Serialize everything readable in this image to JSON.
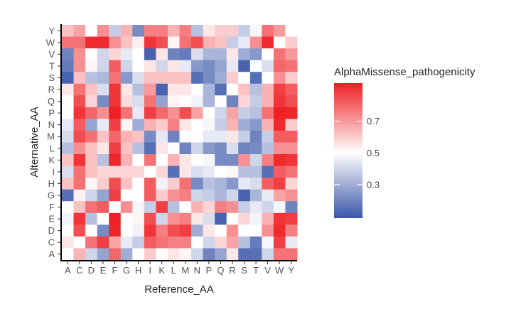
{
  "chart_data": {
    "type": "heatmap",
    "xlabel": "Reference_AA",
    "ylabel": "Alternative_AA",
    "x_categories": [
      "A",
      "C",
      "D",
      "E",
      "F",
      "G",
      "H",
      "I",
      "K",
      "L",
      "M",
      "N",
      "P",
      "Q",
      "R",
      "S",
      "T",
      "V",
      "W",
      "Y"
    ],
    "y_categories": [
      "Y",
      "W",
      "V",
      "T",
      "S",
      "R",
      "Q",
      "P",
      "N",
      "M",
      "L",
      "K",
      "I",
      "H",
      "G",
      "F",
      "E",
      "D",
      "C",
      "A"
    ],
    "legend": {
      "title": "AlphaMissense_pathogenicity",
      "ticks": [
        "0.3",
        "0.5",
        "0.7"
      ],
      "range": [
        0.09,
        0.94
      ],
      "placement": "right"
    },
    "colors": {
      "low": "#3a56a8",
      "mid": "#ffffff",
      "high": "#ee2024"
    },
    "values": [
      [
        0.62,
        0.68,
        0.5,
        0.72,
        0.38,
        0.65,
        0.22,
        0.75,
        0.75,
        0.65,
        0.75,
        0.35,
        0.55,
        0.6,
        0.6,
        0.38,
        0.48,
        0.78,
        0.7,
        0.5
      ],
      [
        0.78,
        0.78,
        0.92,
        0.92,
        0.72,
        0.62,
        0.53,
        0.9,
        0.85,
        0.52,
        0.78,
        0.85,
        0.65,
        0.62,
        0.38,
        0.45,
        0.72,
        0.92,
        0.5,
        0.6
      ],
      [
        0.2,
        0.72,
        0.5,
        0.4,
        0.58,
        0.45,
        0.5,
        0.12,
        0.55,
        0.2,
        0.18,
        0.42,
        0.32,
        0.32,
        0.55,
        0.3,
        0.25,
        0.5,
        0.78,
        0.7
      ],
      [
        0.18,
        0.72,
        0.52,
        0.4,
        0.82,
        0.4,
        0.5,
        0.55,
        0.4,
        0.55,
        0.45,
        0.25,
        0.22,
        0.28,
        0.45,
        0.12,
        0.5,
        0.42,
        0.8,
        0.78
      ],
      [
        0.12,
        0.62,
        0.35,
        0.33,
        0.78,
        0.25,
        0.42,
        0.62,
        0.62,
        0.62,
        0.62,
        0.15,
        0.22,
        0.3,
        0.6,
        0.5,
        0.15,
        0.5,
        0.72,
        0.6
      ],
      [
        0.55,
        0.78,
        0.62,
        0.42,
        0.9,
        0.55,
        0.35,
        0.7,
        0.12,
        0.55,
        0.55,
        0.5,
        0.32,
        0.15,
        0.5,
        0.62,
        0.35,
        0.65,
        0.88,
        0.82
      ],
      [
        0.5,
        0.85,
        0.58,
        0.22,
        0.9,
        0.57,
        0.42,
        0.78,
        0.28,
        0.52,
        0.5,
        0.47,
        0.32,
        0.5,
        0.2,
        0.58,
        0.38,
        0.65,
        0.9,
        0.85
      ],
      [
        0.5,
        0.9,
        0.8,
        0.72,
        0.95,
        0.78,
        0.45,
        0.88,
        0.8,
        0.72,
        0.85,
        0.68,
        0.5,
        0.4,
        0.68,
        0.38,
        0.35,
        0.78,
        0.95,
        0.93
      ],
      [
        0.45,
        0.82,
        0.28,
        0.45,
        0.88,
        0.52,
        0.3,
        0.65,
        0.6,
        0.75,
        0.55,
        0.5,
        0.48,
        0.38,
        0.65,
        0.3,
        0.25,
        0.65,
        0.92,
        0.6
      ],
      [
        0.42,
        0.85,
        0.78,
        0.62,
        0.8,
        0.65,
        0.62,
        0.22,
        0.45,
        0.2,
        0.5,
        0.5,
        0.45,
        0.45,
        0.55,
        0.38,
        0.2,
        0.38,
        0.82,
        0.82
      ],
      [
        0.35,
        0.72,
        0.62,
        0.55,
        0.88,
        0.62,
        0.35,
        0.15,
        0.55,
        0.5,
        0.2,
        0.4,
        0.25,
        0.22,
        0.42,
        0.2,
        0.22,
        0.35,
        0.72,
        0.72
      ],
      [
        0.62,
        0.9,
        0.62,
        0.35,
        0.93,
        0.65,
        0.5,
        0.78,
        0.5,
        0.65,
        0.55,
        0.5,
        0.48,
        0.22,
        0.22,
        0.72,
        0.4,
        0.75,
        0.92,
        0.9
      ],
      [
        0.42,
        0.78,
        0.62,
        0.58,
        0.58,
        0.58,
        0.58,
        0.5,
        0.58,
        0.15,
        0.55,
        0.42,
        0.45,
        0.5,
        0.52,
        0.35,
        0.35,
        0.15,
        0.82,
        0.78
      ],
      [
        0.62,
        0.78,
        0.52,
        0.6,
        0.85,
        0.62,
        0.5,
        0.82,
        0.47,
        0.6,
        0.78,
        0.22,
        0.35,
        0.32,
        0.25,
        0.45,
        0.42,
        0.82,
        0.88,
        0.58
      ],
      [
        0.15,
        0.53,
        0.4,
        0.28,
        0.88,
        0.5,
        0.5,
        0.82,
        0.6,
        0.72,
        0.75,
        0.4,
        0.38,
        0.32,
        0.4,
        0.12,
        0.32,
        0.45,
        0.68,
        0.72
      ],
      [
        0.5,
        0.62,
        0.78,
        0.82,
        0.5,
        0.72,
        0.48,
        0.38,
        0.88,
        0.35,
        0.5,
        0.65,
        0.58,
        0.75,
        0.72,
        0.38,
        0.45,
        0.4,
        0.48,
        0.2
      ],
      [
        0.47,
        0.9,
        0.35,
        0.5,
        0.95,
        0.5,
        0.52,
        0.85,
        0.4,
        0.72,
        0.75,
        0.55,
        0.42,
        0.12,
        0.5,
        0.58,
        0.47,
        0.65,
        0.9,
        0.88
      ],
      [
        0.5,
        0.85,
        0.5,
        0.22,
        0.93,
        0.5,
        0.47,
        0.9,
        0.75,
        0.85,
        0.88,
        0.3,
        0.55,
        0.5,
        0.72,
        0.5,
        0.5,
        0.72,
        0.92,
        0.75
      ],
      [
        0.55,
        0.5,
        0.78,
        0.88,
        0.68,
        0.45,
        0.38,
        0.82,
        0.78,
        0.75,
        0.75,
        0.5,
        0.4,
        0.58,
        0.68,
        0.35,
        0.18,
        0.48,
        0.88,
        0.45
      ],
      [
        0.5,
        0.65,
        0.4,
        0.28,
        0.8,
        0.3,
        0.5,
        0.6,
        0.5,
        0.55,
        0.52,
        0.4,
        0.2,
        0.28,
        0.55,
        0.15,
        0.15,
        0.4,
        0.78,
        0.78
      ]
    ]
  }
}
